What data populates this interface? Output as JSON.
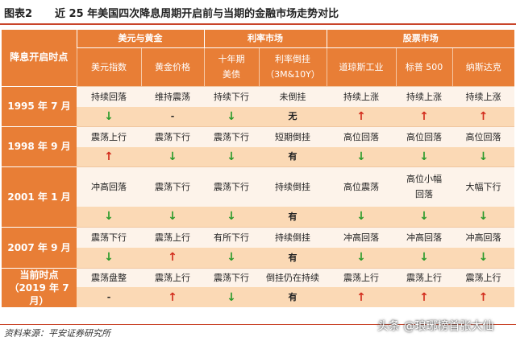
{
  "figure": {
    "label": "图表2",
    "title": "近 25 年美国四次降息周期开启前与当期的金融市场走势对比"
  },
  "header": {
    "corner": "降息开启时点",
    "groups": [
      "美元与黄金",
      "利率市场",
      "股票市场"
    ],
    "columns": [
      {
        "line1": "美元指数",
        "line2": ""
      },
      {
        "line1": "黄金价格",
        "line2": ""
      },
      {
        "line1": "十年期",
        "line2": "美债"
      },
      {
        "line1": "利率倒挂",
        "line2": "（3M&10Y）"
      },
      {
        "line1": "道琼斯工业",
        "line2": ""
      },
      {
        "line1": "标普 500",
        "line2": ""
      },
      {
        "line1": "纳斯达克",
        "line2": ""
      }
    ]
  },
  "rows": [
    {
      "date1": "1995 年 7 月",
      "date2": "",
      "text": [
        {
          "l1": "持续回落",
          "l2": ""
        },
        {
          "l1": "维持震荡",
          "l2": ""
        },
        {
          "l1": "持续下行",
          "l2": ""
        },
        {
          "l1": "未倒挂",
          "l2": ""
        },
        {
          "l1": "持续上涨",
          "l2": ""
        },
        {
          "l1": "持续上涨",
          "l2": ""
        },
        {
          "l1": "持续上涨",
          "l2": ""
        }
      ],
      "signals": [
        "↓",
        "-",
        "↓",
        "无",
        "↑",
        "↑",
        "↑"
      ]
    },
    {
      "date1": "1998 年 9 月",
      "date2": "",
      "text": [
        {
          "l1": "震荡上行",
          "l2": ""
        },
        {
          "l1": "震荡下行",
          "l2": ""
        },
        {
          "l1": "震荡下行",
          "l2": ""
        },
        {
          "l1": "短期倒挂",
          "l2": ""
        },
        {
          "l1": "高位回落",
          "l2": ""
        },
        {
          "l1": "高位回落",
          "l2": ""
        },
        {
          "l1": "高位回落",
          "l2": ""
        }
      ],
      "signals": [
        "↑",
        "↓",
        "↓",
        "有",
        "↓",
        "↓",
        "↓"
      ]
    },
    {
      "date1": "2001 年 1 月",
      "date2": "",
      "text": [
        {
          "l1": "冲高回落",
          "l2": ""
        },
        {
          "l1": "震荡下行",
          "l2": ""
        },
        {
          "l1": "震荡下行",
          "l2": ""
        },
        {
          "l1": "持续倒挂",
          "l2": ""
        },
        {
          "l1": "高位震荡",
          "l2": ""
        },
        {
          "l1": "高位小幅",
          "l2": "回落"
        },
        {
          "l1": "大幅下行",
          "l2": ""
        }
      ],
      "signals": [
        "↓",
        "↓",
        "↓",
        "有",
        "↓",
        "↓",
        "↓"
      ]
    },
    {
      "date1": "2007 年 9 月",
      "date2": "",
      "text": [
        {
          "l1": "震荡下行",
          "l2": ""
        },
        {
          "l1": "震荡上行",
          "l2": ""
        },
        {
          "l1": "有所下行",
          "l2": ""
        },
        {
          "l1": "持续倒挂",
          "l2": ""
        },
        {
          "l1": "冲高回落",
          "l2": ""
        },
        {
          "l1": "冲高回落",
          "l2": ""
        },
        {
          "l1": "冲高回落",
          "l2": ""
        }
      ],
      "signals": [
        "↓",
        "↑",
        "↓",
        "有",
        "↓",
        "↓",
        "↓"
      ]
    },
    {
      "date1": "当前时点",
      "date2": "（2019 年 7 月）",
      "text": [
        {
          "l1": "震荡盘整",
          "l2": ""
        },
        {
          "l1": "震荡上行",
          "l2": ""
        },
        {
          "l1": "震荡下行",
          "l2": ""
        },
        {
          "l1": "倒挂仍在持续",
          "l2": ""
        },
        {
          "l1": "震荡上行",
          "l2": ""
        },
        {
          "l1": "震荡上行",
          "l2": ""
        },
        {
          "l1": "震荡上行",
          "l2": ""
        }
      ],
      "signals": [
        "-",
        "↑",
        "↓",
        "有",
        "↑",
        "↑",
        "↑"
      ]
    }
  ],
  "footer": {
    "source": "资料来源：平安证券研究所"
  },
  "watermark": {
    "text": "头条 @琅琊榜首张大仙"
  },
  "colors": {
    "header_orange": "#e87e36",
    "row_light": "#fdf3ea",
    "row_orange": "#fbd9b5",
    "rule_red": "#c9452a",
    "arrow_up": "#d22c1c",
    "arrow_down": "#2a9a2a"
  }
}
